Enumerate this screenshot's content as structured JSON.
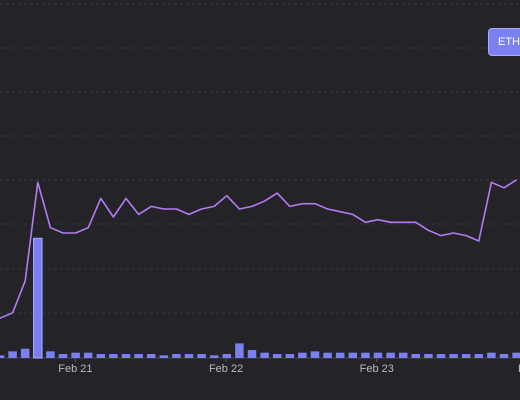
{
  "badge": {
    "label": "ETH"
  },
  "colors": {
    "background": "#242327",
    "line": "#b37cf2",
    "bars": "#7b80f0",
    "grid": "#3a3940"
  },
  "chart_data": {
    "type": "bar",
    "combo": "bar+line",
    "title": "",
    "xlabel": "",
    "ylabel": "",
    "x_ticks": [
      {
        "label": "Feb 21",
        "x": 21.25
      },
      {
        "label": "Feb 22",
        "x": 22.25
      },
      {
        "label": "Feb 23",
        "x": 23.25
      },
      {
        "label": "Feb",
        "x": 24.25
      }
    ],
    "xlim": [
      20.75,
      24.2
    ],
    "grid": "horizontal dashed",
    "series": [
      {
        "kind": "line",
        "values": [
          15,
          17,
          29,
          66,
          49,
          47,
          47,
          49,
          60,
          53,
          60,
          54,
          57,
          56,
          56,
          54,
          56,
          57,
          61,
          56,
          57,
          59,
          62,
          57,
          58,
          58,
          56,
          55,
          54,
          51,
          52,
          51,
          51,
          51,
          48,
          46,
          47,
          46,
          44,
          66,
          64,
          67
        ]
      },
      {
        "kind": "bar",
        "values": [
          1.0,
          2.5,
          3.5,
          45,
          2.5,
          1.5,
          2.0,
          2.0,
          1.5,
          1.5,
          1.5,
          1.5,
          1.5,
          1.0,
          1.5,
          1.5,
          1.5,
          1.0,
          1.5,
          5.5,
          3.0,
          2.0,
          1.5,
          1.5,
          2.0,
          2.5,
          2.0,
          2.0,
          2.0,
          2.0,
          2.0,
          2.0,
          2.0,
          1.5,
          1.5,
          1.5,
          1.5,
          1.5,
          1.5,
          2.0,
          1.5,
          2.0
        ]
      }
    ],
    "ylim": [
      0,
      100
    ]
  }
}
